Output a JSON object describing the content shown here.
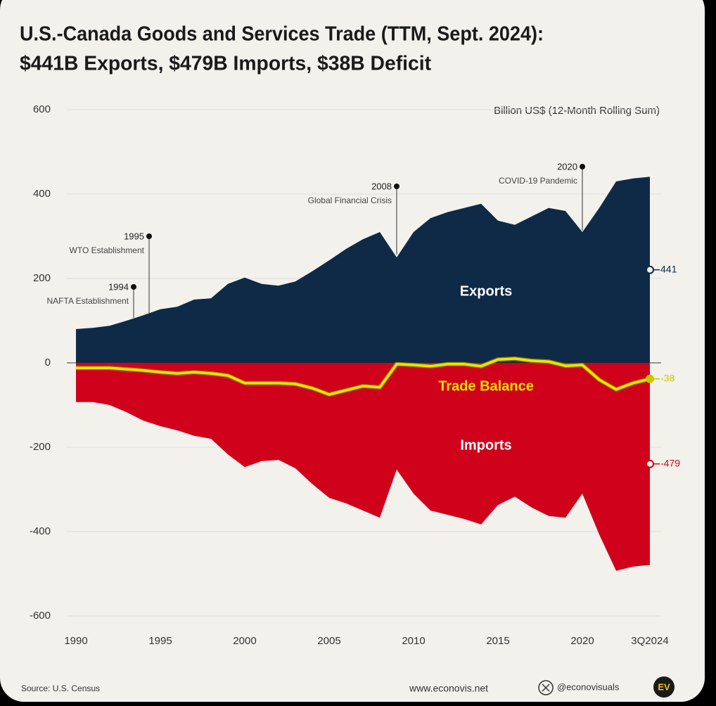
{
  "chart_data": {
    "type": "area",
    "title": "U.S.-Canada Goods and Services Trade (TTM, Sept. 2024):",
    "subtitle": "$441B Exports, $479B Imports, $38B Deficit",
    "unit_label": "Billion US$ (12-Month Rolling Sum)",
    "categories": [
      "1990",
      null,
      null,
      null,
      null,
      "1995",
      null,
      null,
      null,
      null,
      "2000",
      null,
      null,
      null,
      null,
      "2005",
      null,
      null,
      null,
      null,
      "2010",
      null,
      null,
      null,
      null,
      "2015",
      null,
      null,
      null,
      null,
      "2020",
      null,
      null,
      null,
      "3Q2024"
    ],
    "series": [
      {
        "name": "Exports",
        "color": "#0e2a47",
        "kind": "area",
        "values": [
          80,
          83,
          88,
          100,
          113,
          127,
          133,
          150,
          153,
          187,
          202,
          187,
          183,
          193,
          217,
          243,
          270,
          293,
          310,
          250,
          310,
          343,
          357,
          367,
          377,
          337,
          327,
          347,
          367,
          360,
          310,
          367,
          430,
          437,
          441
        ],
        "value_labels": [
          null,
          null,
          null,
          null,
          null,
          null,
          null,
          null,
          null,
          null,
          null,
          null,
          null,
          null,
          null,
          null,
          null,
          null,
          null,
          null,
          null,
          null,
          null,
          null,
          null,
          null,
          null,
          null,
          null,
          null,
          null,
          null,
          null,
          null,
          "441"
        ]
      },
      {
        "name": "Imports",
        "color": "#d0021b",
        "kind": "area",
        "values": [
          -93,
          -93,
          -100,
          -117,
          -137,
          -150,
          -160,
          -173,
          -180,
          -217,
          -247,
          -233,
          -230,
          -250,
          -287,
          -320,
          -333,
          -350,
          -367,
          -253,
          -310,
          -350,
          -360,
          -370,
          -383,
          -337,
          -317,
          -343,
          -363,
          -367,
          -310,
          -407,
          -493,
          -483,
          -479
        ],
        "value_labels": [
          null,
          null,
          null,
          null,
          null,
          null,
          null,
          null,
          null,
          null,
          null,
          null,
          null,
          null,
          null,
          null,
          null,
          null,
          null,
          null,
          null,
          null,
          null,
          null,
          null,
          null,
          null,
          null,
          null,
          null,
          null,
          null,
          null,
          null,
          "-479"
        ]
      },
      {
        "name": "Trade Balance",
        "color": "#f0e400",
        "kind": "line",
        "values": [
          -12,
          -12,
          -12,
          -15,
          -18,
          -22,
          -25,
          -22,
          -25,
          -30,
          -48,
          -48,
          -48,
          -50,
          -60,
          -75,
          -65,
          -55,
          -58,
          -3,
          -5,
          -8,
          -3,
          -3,
          -8,
          8,
          10,
          5,
          3,
          -7,
          -5,
          -40,
          -63,
          -48,
          -38
        ],
        "value_labels": [
          null,
          null,
          null,
          null,
          null,
          null,
          null,
          null,
          null,
          null,
          null,
          null,
          null,
          null,
          null,
          null,
          null,
          null,
          null,
          null,
          null,
          null,
          null,
          null,
          null,
          null,
          null,
          null,
          null,
          null,
          null,
          null,
          null,
          null,
          "-38"
        ]
      }
    ],
    "ylim": [
      -600,
      600
    ],
    "yticks": [
      600,
      400,
      200,
      0,
      -200,
      -400,
      -600
    ],
    "grid": true,
    "annotations": [
      {
        "label": "1994",
        "text": "NAFTA Establishment"
      },
      {
        "label": "1995",
        "text": "WTO Establishment"
      },
      {
        "label": "2008",
        "text": "Global Financial Crisis"
      },
      {
        "label": "2020",
        "text": "COVID-19 Pandemic"
      }
    ],
    "source": "Source: U.S. Census",
    "website": "www.econovis.net",
    "handle": "@econovisuals",
    "logo": "EV"
  }
}
